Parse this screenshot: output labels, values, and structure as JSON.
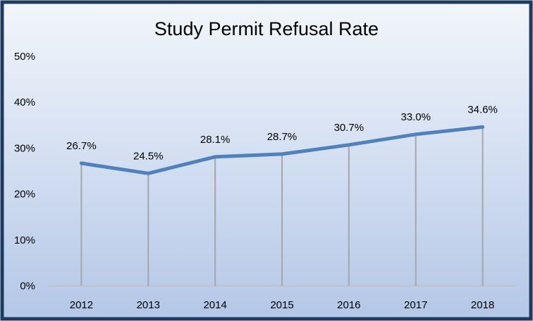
{
  "chart_data": {
    "type": "line",
    "title": "Study Permit Refusal Rate",
    "xlabel": "",
    "ylabel": "",
    "categories": [
      "2012",
      "2013",
      "2014",
      "2015",
      "2016",
      "2017",
      "2018"
    ],
    "series": [
      {
        "values": [
          26.7,
          24.5,
          28.1,
          28.7,
          30.7,
          33.0,
          34.6
        ],
        "data_labels": [
          "26.7%",
          "24.5%",
          "28.1%",
          "28.7%",
          "30.7%",
          "33.0%",
          "34.6%"
        ]
      }
    ],
    "yticks": [
      "0%",
      "10%",
      "20%",
      "30%",
      "40%",
      "50%"
    ],
    "ylim": [
      0,
      50
    ],
    "grid": false,
    "drop_lines": true,
    "legend": "none",
    "colors": {
      "line": "#4f81bd",
      "drop_line": "#a6a6a6",
      "axis": "#bfbfbf",
      "frame": "#1f3a60",
      "background_top": "#f2f6fb",
      "background_bottom": "#b4c7e7"
    }
  }
}
